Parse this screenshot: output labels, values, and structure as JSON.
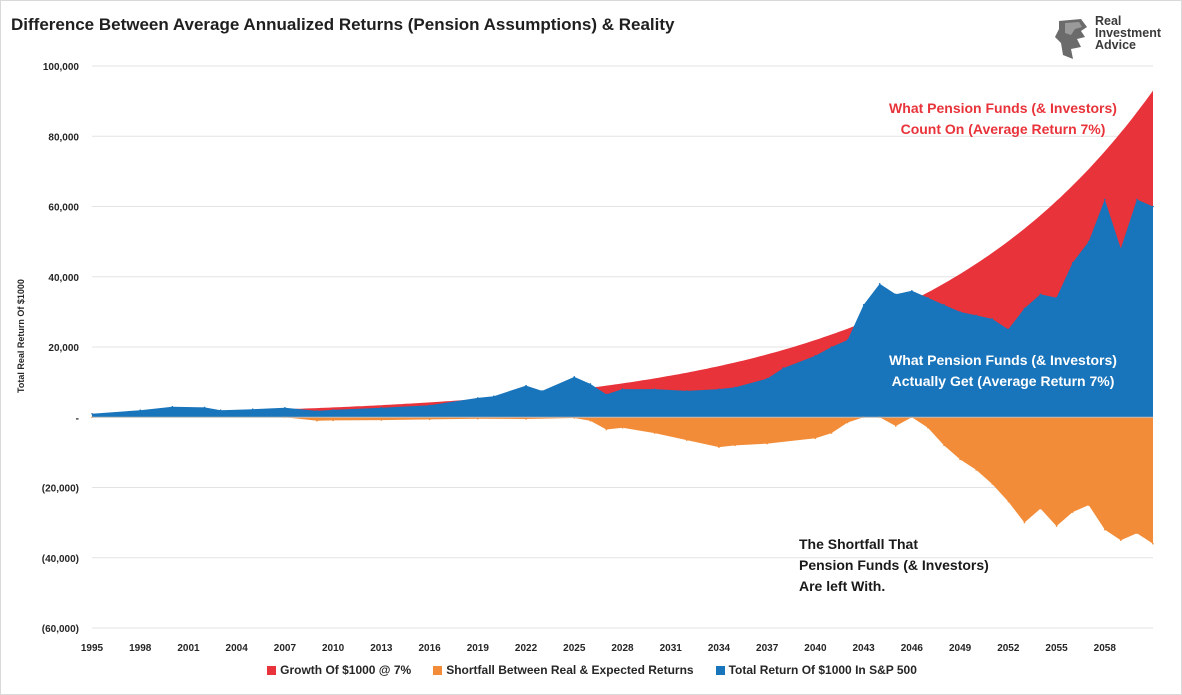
{
  "chart_data": {
    "type": "area",
    "title": "Difference Between Average Annualized Returns (Pension Assumptions) & Reality",
    "xlabel": "",
    "ylabel": "Total Real Return Of $1000",
    "xlim": [
      1995,
      2061
    ],
    "ylim": [
      -60000,
      100000
    ],
    "y_ticks": [
      "100,000",
      "80,000",
      "60,000",
      "40,000",
      "20,000",
      "-",
      "(20,000)",
      "(40,000)",
      "(60,000)"
    ],
    "y_tick_values": [
      100000,
      80000,
      60000,
      40000,
      20000,
      0,
      -20000,
      -40000,
      -60000
    ],
    "x_ticks": [
      "1995",
      "1998",
      "2001",
      "2004",
      "2007",
      "2010",
      "2013",
      "2016",
      "2019",
      "2022",
      "2025",
      "2028",
      "2031",
      "2034",
      "2037",
      "2040",
      "2043",
      "2046",
      "2049",
      "2052",
      "2055",
      "2058"
    ],
    "grid": "horizontal",
    "legend_position": "bottom",
    "series": [
      {
        "name": "Growth Of $1000 @ 7%",
        "color": "#e8333a",
        "kind": "exponential",
        "start_year": 1995,
        "start_value": 1000,
        "end_year": 2061,
        "end_value": 93000
      },
      {
        "name": "Total Return Of $1000 In S&P 500",
        "color": "#1874bb",
        "x": [
          1995,
          1998,
          2000,
          2002,
          2003,
          2005,
          2007,
          2009,
          2010,
          2013,
          2016,
          2019,
          2020,
          2022,
          2023,
          2025,
          2026,
          2027,
          2028,
          2030,
          2032,
          2034,
          2035,
          2037,
          2038,
          2040,
          2041,
          2042,
          2043,
          2044,
          2045,
          2046,
          2047,
          2048,
          2049,
          2050,
          2051,
          2052,
          2053,
          2054,
          2055,
          2056,
          2057,
          2058,
          2059,
          2060,
          2061
        ],
        "values": [
          1000,
          2000,
          3000,
          2800,
          2000,
          2300,
          2700,
          1800,
          2100,
          2700,
          3400,
          5500,
          6000,
          9000,
          7500,
          11500,
          9500,
          6500,
          8000,
          8000,
          7500,
          8000,
          8500,
          11000,
          14000,
          17500,
          20000,
          22000,
          32000,
          38000,
          35000,
          36000,
          34000,
          32000,
          30000,
          29000,
          28000,
          25000,
          31000,
          35000,
          34000,
          44000,
          50000,
          62000,
          48000,
          62000,
          60000
        ]
      },
      {
        "name": "Shortfall Between Real & Expected Returns",
        "color": "#f28c38",
        "x": [
          1995,
          2007,
          2009,
          2010,
          2013,
          2016,
          2019,
          2022,
          2025,
          2026,
          2027,
          2028,
          2030,
          2032,
          2034,
          2035,
          2037,
          2040,
          2041,
          2042,
          2043,
          2044,
          2045,
          2046,
          2047,
          2048,
          2049,
          2050,
          2051,
          2052,
          2053,
          2054,
          2055,
          2056,
          2057,
          2058,
          2059,
          2060,
          2061
        ],
        "values": [
          0,
          0,
          -1000,
          -900,
          -800,
          -600,
          -400,
          -500,
          -200,
          -1000,
          -3500,
          -3000,
          -4500,
          -6500,
          -8500,
          -8000,
          -7500,
          -6000,
          -4500,
          -1500,
          0,
          0,
          -2500,
          0,
          -3000,
          -8000,
          -12000,
          -15000,
          -19000,
          -24000,
          -30000,
          -26000,
          -31000,
          -27000,
          -25000,
          -32000,
          -35000,
          -33000,
          -36000
        ]
      }
    ],
    "annotations": [
      {
        "lines": [
          "What Pension Funds (& Investors)",
          "Count On (Average Return 7%)"
        ],
        "color": "#e8333a"
      },
      {
        "lines": [
          "What Pension Funds (& Investors)",
          "Actually Get (Average Return 7%)"
        ],
        "color": "#ffffff"
      },
      {
        "lines": [
          "The Shortfall That",
          "Pension Funds (& Investors)",
          "Are left With."
        ],
        "color": "#1a1a1a"
      }
    ]
  },
  "logo": {
    "lines": [
      "Real",
      "Investment",
      "Advice"
    ]
  },
  "legend": [
    {
      "label": "Growth Of $1000 @ 7%",
      "color": "#e8333a"
    },
    {
      "label": "Shortfall Between Real & Expected Returns",
      "color": "#f28c38"
    },
    {
      "label": "Total Return Of $1000 In S&P 500",
      "color": "#1874bb"
    }
  ]
}
